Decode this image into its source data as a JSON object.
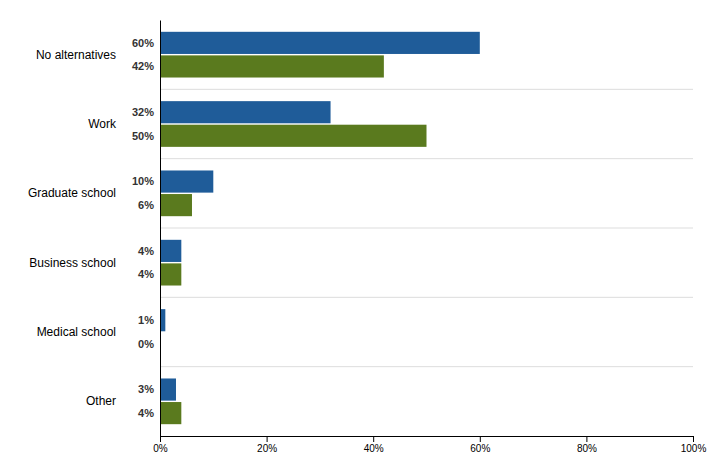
{
  "chart_data": {
    "type": "bar",
    "orientation": "horizontal",
    "data_labels": true,
    "categories": [
      "No alternatives",
      "Work",
      "Graduate school",
      "Business school",
      "Medical school",
      "Other"
    ],
    "series": [
      {
        "color": "#1F5C99",
        "values": [
          60,
          32,
          10,
          4,
          1,
          3
        ],
        "value_labels": [
          "60%",
          "32%",
          "10%",
          "4%",
          "1%",
          "3%"
        ]
      },
      {
        "color": "#5A7A1E",
        "values": [
          42,
          50,
          6,
          4,
          0,
          4
        ],
        "value_labels": [
          "42%",
          "50%",
          "6%",
          "4%",
          "0%",
          "4%"
        ]
      }
    ],
    "xlim": [
      0,
      100
    ],
    "xticks": [
      {
        "value": 0,
        "label": "0%"
      },
      {
        "value": 20,
        "label": "20%"
      },
      {
        "value": 40,
        "label": "40%"
      },
      {
        "value": 60,
        "label": "60%"
      },
      {
        "value": 80,
        "label": "80%"
      },
      {
        "value": 100,
        "label": "100%"
      }
    ]
  }
}
